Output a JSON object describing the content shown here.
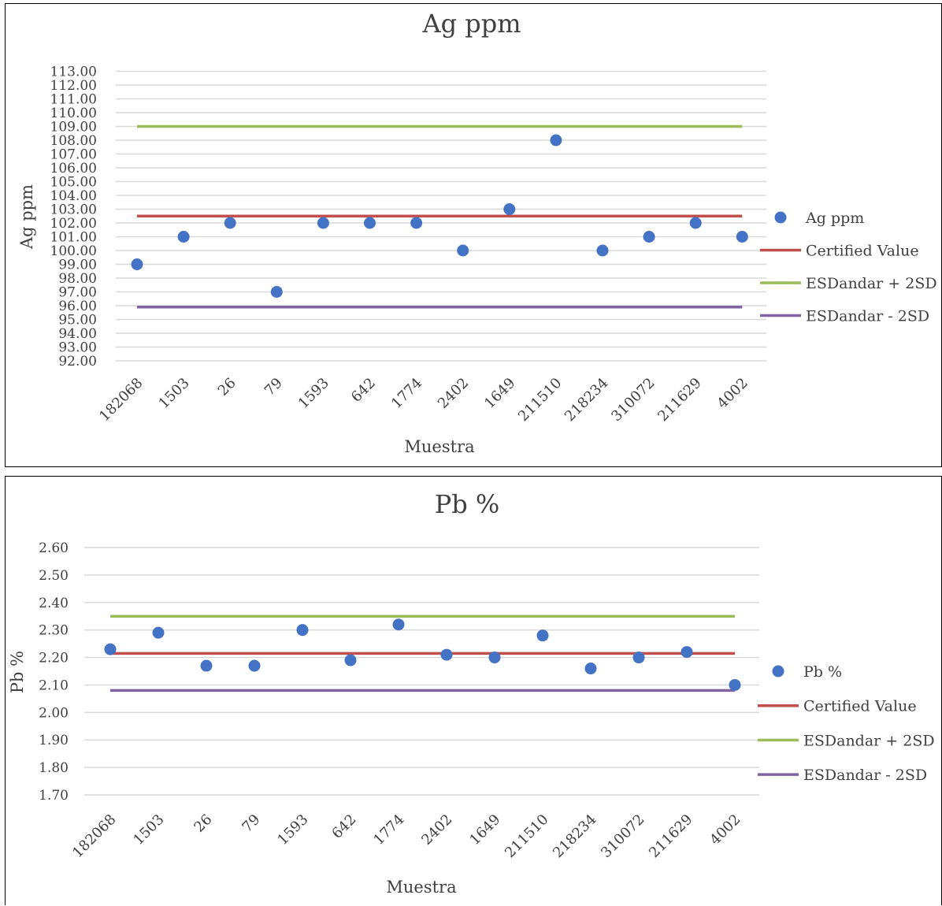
{
  "chart_data": [
    {
      "type": "scatter",
      "title": "Ag ppm",
      "xlabel": "Muestra",
      "ylabel": "Ag ppm",
      "categories": [
        "182068",
        "1503",
        "26",
        "79",
        "1593",
        "642",
        "1774",
        "2402",
        "1649",
        "211510",
        "218234",
        "310072",
        "211629",
        "4002"
      ],
      "y_ticks": [
        "92.00",
        "93.00",
        "94.00",
        "95.00",
        "96.00",
        "97.00",
        "98.00",
        "99.00",
        "100.00",
        "101.00",
        "102.00",
        "103.00",
        "104.00",
        "105.00",
        "106.00",
        "107.00",
        "108.00",
        "109.00",
        "110.00",
        "111.00",
        "112.00",
        "113.00"
      ],
      "ylim": [
        92,
        113
      ],
      "grid": true,
      "legend_position": "right",
      "series": [
        {
          "name": "Ag ppm",
          "kind": "points",
          "color": "#4472C4",
          "values": [
            99,
            101,
            102,
            97,
            102,
            102,
            102,
            100,
            103,
            108,
            100,
            101,
            102,
            101
          ]
        },
        {
          "name": "Certified Value",
          "kind": "line",
          "color": "#C0504D",
          "values": [
            102.5,
            102.5,
            102.5,
            102.5,
            102.5,
            102.5,
            102.5,
            102.5,
            102.5,
            102.5,
            102.5,
            102.5,
            102.5,
            102.5
          ]
        },
        {
          "name": "ESDandar + 2SD",
          "kind": "line",
          "color": "#9BBB59",
          "values": [
            109,
            109,
            109,
            109,
            109,
            109,
            109,
            109,
            109,
            109,
            109,
            109,
            109,
            109
          ]
        },
        {
          "name": "ESDandar - 2SD",
          "kind": "line",
          "color": "#8064A2",
          "values": [
            95.9,
            95.9,
            95.9,
            95.9,
            95.9,
            95.9,
            95.9,
            95.9,
            95.9,
            95.9,
            95.9,
            95.9,
            95.9,
            95.9
          ]
        }
      ]
    },
    {
      "type": "scatter",
      "title": "Pb %",
      "xlabel": "Muestra",
      "ylabel": "Pb %",
      "categories": [
        "182068",
        "1503",
        "26",
        "79",
        "1593",
        "642",
        "1774",
        "2402",
        "1649",
        "211510",
        "218234",
        "310072",
        "211629",
        "4002"
      ],
      "y_ticks": [
        "1.70",
        "1.80",
        "1.90",
        "2.00",
        "2.10",
        "2.20",
        "2.30",
        "2.40",
        "2.50",
        "2.60"
      ],
      "ylim": [
        1.7,
        2.6
      ],
      "grid": true,
      "legend_position": "right",
      "series": [
        {
          "name": "Pb %",
          "kind": "points",
          "color": "#4472C4",
          "values": [
            2.23,
            2.29,
            2.17,
            2.17,
            2.3,
            2.19,
            2.32,
            2.21,
            2.2,
            2.28,
            2.16,
            2.2,
            2.22,
            2.1
          ]
        },
        {
          "name": "Certified Value",
          "kind": "line",
          "color": "#C0504D",
          "values": [
            2.215,
            2.215,
            2.215,
            2.215,
            2.215,
            2.215,
            2.215,
            2.215,
            2.215,
            2.215,
            2.215,
            2.215,
            2.215,
            2.215
          ]
        },
        {
          "name": "ESDandar + 2SD",
          "kind": "line",
          "color": "#9BBB59",
          "values": [
            2.35,
            2.35,
            2.35,
            2.35,
            2.35,
            2.35,
            2.35,
            2.35,
            2.35,
            2.35,
            2.35,
            2.35,
            2.35,
            2.35
          ]
        },
        {
          "name": "ESDandar - 2SD",
          "kind": "line",
          "color": "#8064A2",
          "values": [
            2.08,
            2.08,
            2.08,
            2.08,
            2.08,
            2.08,
            2.08,
            2.08,
            2.08,
            2.08,
            2.08,
            2.08,
            2.08,
            2.08
          ]
        }
      ]
    }
  ]
}
